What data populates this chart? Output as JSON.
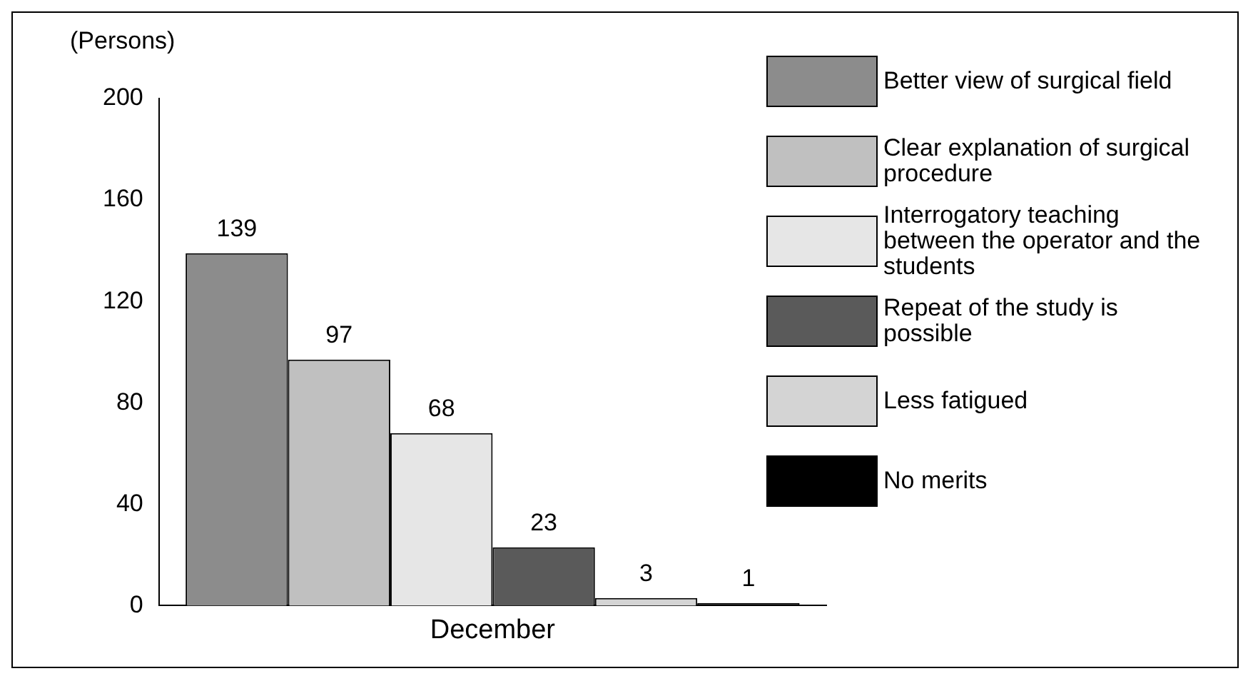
{
  "chart_data": {
    "type": "bar",
    "ylabel": "(Persons)",
    "categories": [
      "December"
    ],
    "series": [
      {
        "name": "Better view of surgical field",
        "color": "#8c8c8c",
        "values": [
          139
        ]
      },
      {
        "name": "Clear explanation of surgical procedure",
        "color": "#c0c0c0",
        "values": [
          97
        ]
      },
      {
        "name": "Interrogatory teaching between the operator and the students",
        "color": "#e6e6e6",
        "values": [
          68
        ]
      },
      {
        "name": "Repeat of the study is possible",
        "color": "#5a5a5a",
        "values": [
          23
        ]
      },
      {
        "name": "Less fatigued",
        "color": "#d4d4d4",
        "values": [
          3
        ]
      },
      {
        "name": "No merits",
        "color": "#000000",
        "values": [
          1
        ]
      }
    ],
    "ylim": [
      0,
      200
    ],
    "yticks": [
      0,
      40,
      80,
      120,
      160,
      200
    ],
    "data_labels": true,
    "legend": "right",
    "grid": false
  }
}
